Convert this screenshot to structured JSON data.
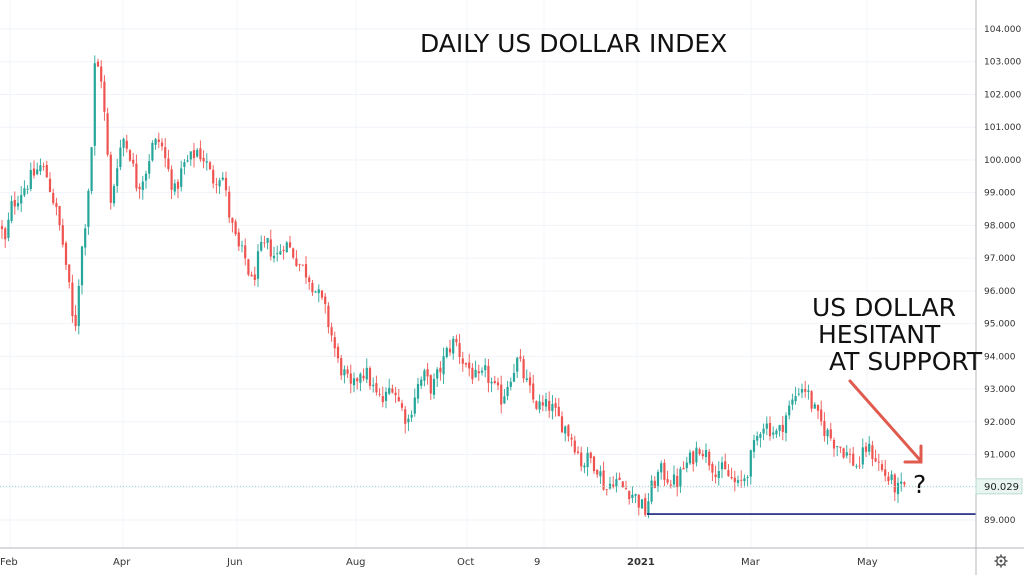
{
  "chart_data": {
    "type": "candlestick",
    "title": "DAILY US DOLLAR INDEX",
    "annotation": {
      "lines": [
        "US DOLLAR",
        "HESITANT",
        "AT SUPPORT"
      ],
      "marker": "?"
    },
    "y_axis": {
      "range": [
        88.5,
        104.5
      ],
      "tick_labels": [
        "104.000",
        "103.000",
        "102.000",
        "101.000",
        "100.000",
        "99.000",
        "98.000",
        "97.000",
        "96.000",
        "95.000",
        "94.000",
        "93.000",
        "92.000",
        "91.000",
        "90.000",
        "89.000"
      ]
    },
    "x_axis": {
      "tick_labels": [
        "Feb",
        "Apr",
        "Jun",
        "Aug",
        "Oct",
        "9",
        "2021",
        "Mar",
        "May"
      ],
      "bold_label": "2021"
    },
    "current_price": {
      "label": "90.029",
      "value": 90.029
    },
    "support_level": 89.18,
    "up_color": "#26a69a",
    "down_color": "#ef5350",
    "support_color": "#1a237e",
    "price_path": [
      [
        0,
        98.0
      ],
      [
        6,
        97.4
      ],
      [
        10,
        98.5
      ],
      [
        20,
        99.0
      ],
      [
        30,
        99.4
      ],
      [
        40,
        99.8
      ],
      [
        46,
        99.6
      ],
      [
        55,
        98.6
      ],
      [
        62,
        97.6
      ],
      [
        68,
        96.4
      ],
      [
        72,
        95.2
      ],
      [
        75,
        94.8
      ],
      [
        80,
        96.8
      ],
      [
        87,
        98.6
      ],
      [
        92,
        100.6
      ],
      [
        95,
        103.0
      ],
      [
        101,
        102.6
      ],
      [
        106,
        100.8
      ],
      [
        111,
        98.5
      ],
      [
        116,
        99.8
      ],
      [
        123,
        100.7
      ],
      [
        130,
        100.2
      ],
      [
        137,
        99.2
      ],
      [
        145,
        99.6
      ],
      [
        152,
        100.4
      ],
      [
        160,
        100.6
      ],
      [
        167,
        99.8
      ],
      [
        175,
        99.0
      ],
      [
        183,
        99.8
      ],
      [
        190,
        100.0
      ],
      [
        197,
        100.3
      ],
      [
        205,
        100.0
      ],
      [
        212,
        99.4
      ],
      [
        222,
        99.6
      ],
      [
        230,
        98.2
      ],
      [
        238,
        97.3
      ],
      [
        245,
        97.0
      ],
      [
        252,
        96.2
      ],
      [
        260,
        97.2
      ],
      [
        268,
        97.4
      ],
      [
        276,
        97.0
      ],
      [
        284,
        97.5
      ],
      [
        292,
        97.2
      ],
      [
        300,
        96.8
      ],
      [
        308,
        96.5
      ],
      [
        316,
        96.0
      ],
      [
        324,
        95.5
      ],
      [
        332,
        94.6
      ],
      [
        338,
        93.8
      ],
      [
        345,
        93.4
      ],
      [
        352,
        92.9
      ],
      [
        360,
        93.6
      ],
      [
        368,
        93.4
      ],
      [
        376,
        92.8
      ],
      [
        384,
        92.6
      ],
      [
        392,
        93.2
      ],
      [
        400,
        92.5
      ],
      [
        408,
        92.0
      ],
      [
        416,
        93.0
      ],
      [
        424,
        93.4
      ],
      [
        432,
        93.0
      ],
      [
        440,
        93.6
      ],
      [
        448,
        94.2
      ],
      [
        455,
        94.5
      ],
      [
        462,
        93.9
      ],
      [
        470,
        93.6
      ],
      [
        478,
        93.2
      ],
      [
        486,
        93.5
      ],
      [
        494,
        93.0
      ],
      [
        502,
        92.7
      ],
      [
        510,
        93.4
      ],
      [
        518,
        93.9
      ],
      [
        526,
        93.2
      ],
      [
        534,
        92.6
      ],
      [
        542,
        92.4
      ],
      [
        550,
        92.5
      ],
      [
        558,
        92.1
      ],
      [
        566,
        91.8
      ],
      [
        574,
        91.4
      ],
      [
        582,
        90.7
      ],
      [
        590,
        90.9
      ],
      [
        598,
        90.6
      ],
      [
        606,
        89.9
      ],
      [
        614,
        90.3
      ],
      [
        622,
        90.0
      ],
      [
        630,
        89.9
      ],
      [
        638,
        89.6
      ],
      [
        645,
        89.25
      ],
      [
        652,
        90.0
      ],
      [
        660,
        90.5
      ],
      [
        668,
        90.3
      ],
      [
        676,
        90.1
      ],
      [
        684,
        90.6
      ],
      [
        692,
        90.9
      ],
      [
        700,
        91.3
      ],
      [
        706,
        91.0
      ],
      [
        714,
        90.6
      ],
      [
        722,
        90.5
      ],
      [
        730,
        90.3
      ],
      [
        738,
        90.0
      ],
      [
        746,
        90.4
      ],
      [
        754,
        91.2
      ],
      [
        762,
        92.0
      ],
      [
        770,
        91.8
      ],
      [
        778,
        91.6
      ],
      [
        786,
        92.2
      ],
      [
        794,
        92.7
      ],
      [
        800,
        93.1
      ],
      [
        806,
        93.0
      ],
      [
        812,
        92.5
      ],
      [
        818,
        92.1
      ],
      [
        826,
        91.7
      ],
      [
        834,
        91.4
      ],
      [
        842,
        91.2
      ],
      [
        850,
        90.9
      ],
      [
        858,
        90.6
      ],
      [
        866,
        91.2
      ],
      [
        874,
        91.0
      ],
      [
        882,
        90.5
      ],
      [
        890,
        90.2
      ],
      [
        898,
        89.9
      ],
      [
        905,
        90.0
      ]
    ]
  }
}
